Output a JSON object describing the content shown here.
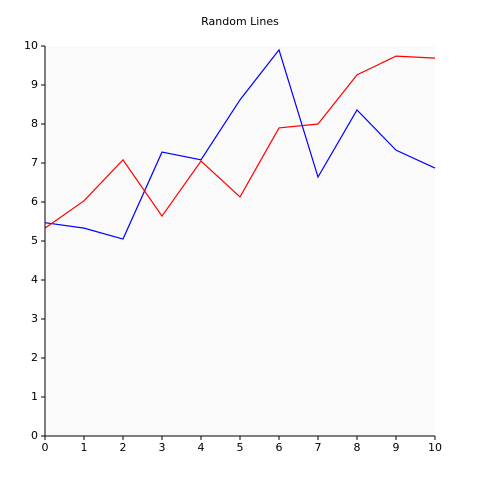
{
  "chart_data": {
    "type": "line",
    "title": "Random Lines",
    "x": [
      0,
      1,
      2,
      3,
      4,
      5,
      6,
      7,
      8,
      9,
      10
    ],
    "series": [
      {
        "color": "#0000ff",
        "values": [
          5.47,
          5.33,
          5.05,
          7.28,
          7.08,
          8.62,
          9.9,
          6.64,
          8.36,
          7.33,
          6.87
        ]
      },
      {
        "color": "#ff0000",
        "values": [
          5.33,
          6.03,
          7.08,
          5.64,
          7.05,
          6.13,
          7.9,
          8.0,
          9.26,
          9.74,
          9.69
        ]
      }
    ],
    "xlim": [
      0,
      10
    ],
    "xticks": [
      0,
      1,
      2,
      3,
      4,
      5,
      6,
      7,
      8,
      9,
      10
    ],
    "ylim": [
      0,
      10
    ],
    "yticks": [
      0,
      1,
      2,
      3,
      4,
      5,
      6,
      7,
      8,
      9,
      10
    ],
    "background": "#fafafa"
  }
}
